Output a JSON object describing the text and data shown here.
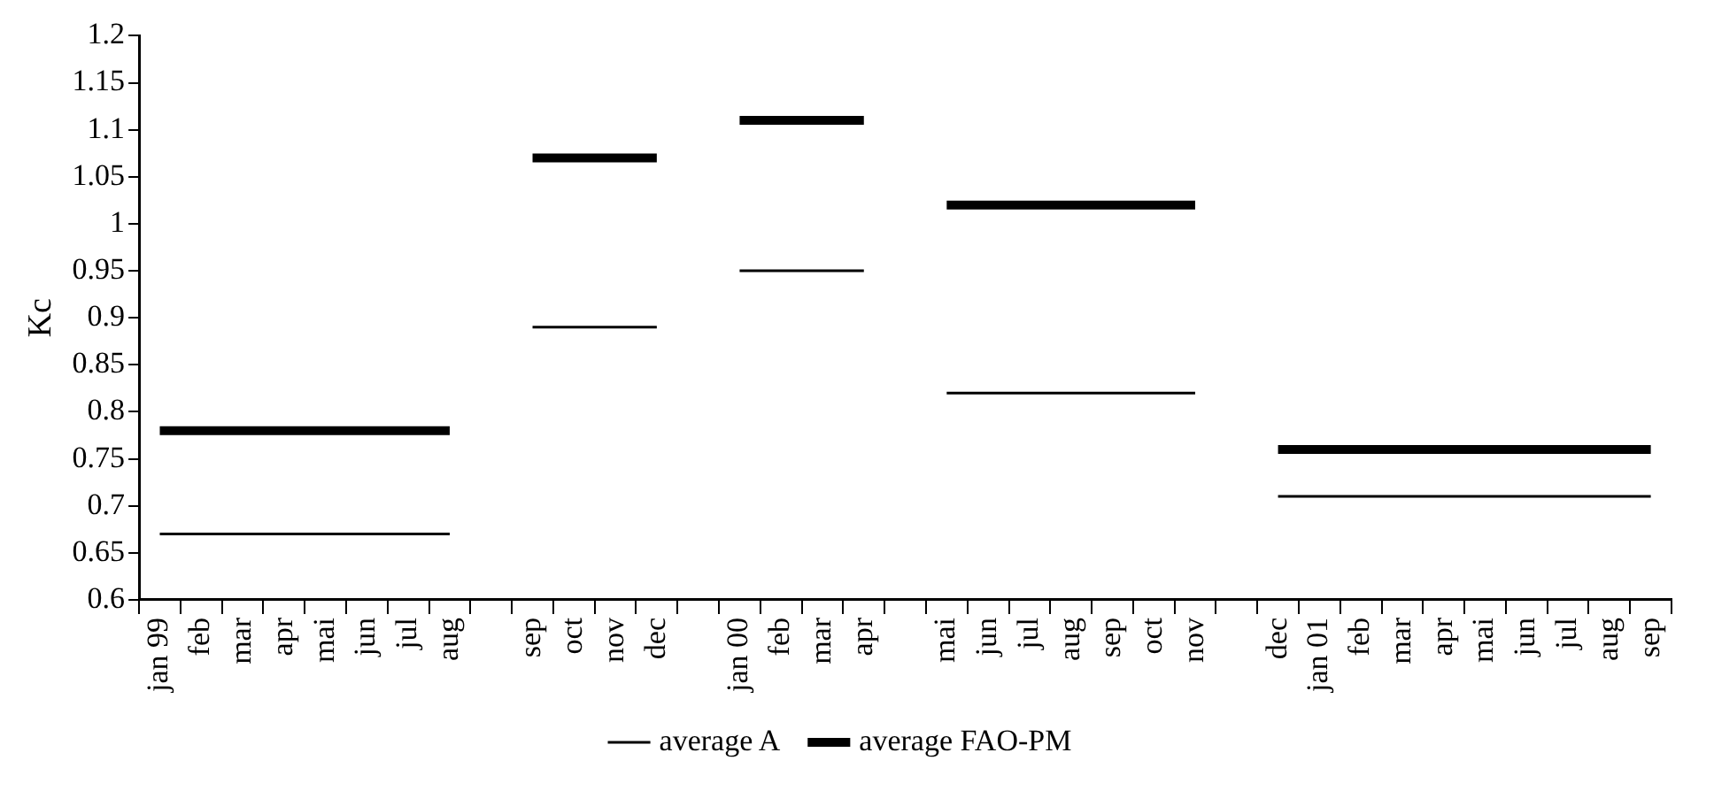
{
  "chart_data": {
    "type": "line",
    "ylabel": "Kc",
    "categories": [
      "jan 99",
      "feb",
      "mar",
      "apr",
      "mai",
      "jun",
      "jul",
      "aug",
      null,
      "sep",
      "oct",
      "nov",
      "dec",
      null,
      "jan 00",
      "feb",
      "mar",
      "apr",
      null,
      "mai",
      "jun",
      "jul",
      "aug",
      "sep",
      "oct",
      "nov",
      null,
      "dec",
      "jan 01",
      "feb",
      "mar",
      "apr",
      "mai",
      "jun",
      "jul",
      "aug",
      "sep"
    ],
    "series": [
      {
        "name": "average A",
        "color": "#000000",
        "values": [
          0.67,
          0.67,
          0.67,
          0.67,
          0.67,
          0.67,
          0.67,
          0.67,
          null,
          0.89,
          0.89,
          0.89,
          0.89,
          null,
          0.95,
          0.95,
          0.95,
          0.95,
          null,
          0.82,
          0.82,
          0.82,
          0.82,
          0.82,
          0.82,
          0.82,
          null,
          0.71,
          0.71,
          0.71,
          0.71,
          0.71,
          0.71,
          0.71,
          0.71,
          0.71,
          0.71
        ]
      },
      {
        "name": "average FAO-PM",
        "color": "#000000",
        "values": [
          0.78,
          0.78,
          0.78,
          0.78,
          0.78,
          0.78,
          0.78,
          0.78,
          null,
          1.07,
          1.07,
          1.07,
          1.07,
          null,
          1.11,
          1.11,
          1.11,
          1.11,
          null,
          1.02,
          1.02,
          1.02,
          1.02,
          1.02,
          1.02,
          1.02,
          null,
          0.76,
          0.76,
          0.76,
          0.76,
          0.76,
          0.76,
          0.76,
          0.76,
          0.76,
          0.76
        ]
      }
    ],
    "ylim": [
      0.6,
      1.2
    ],
    "yticks": [
      0.6,
      0.65,
      0.7,
      0.75,
      0.8,
      0.85,
      0.9,
      0.95,
      1,
      1.05,
      1.1,
      1.15,
      1.2
    ],
    "legend": "bottom",
    "marker": "none",
    "line_style": "solid"
  }
}
